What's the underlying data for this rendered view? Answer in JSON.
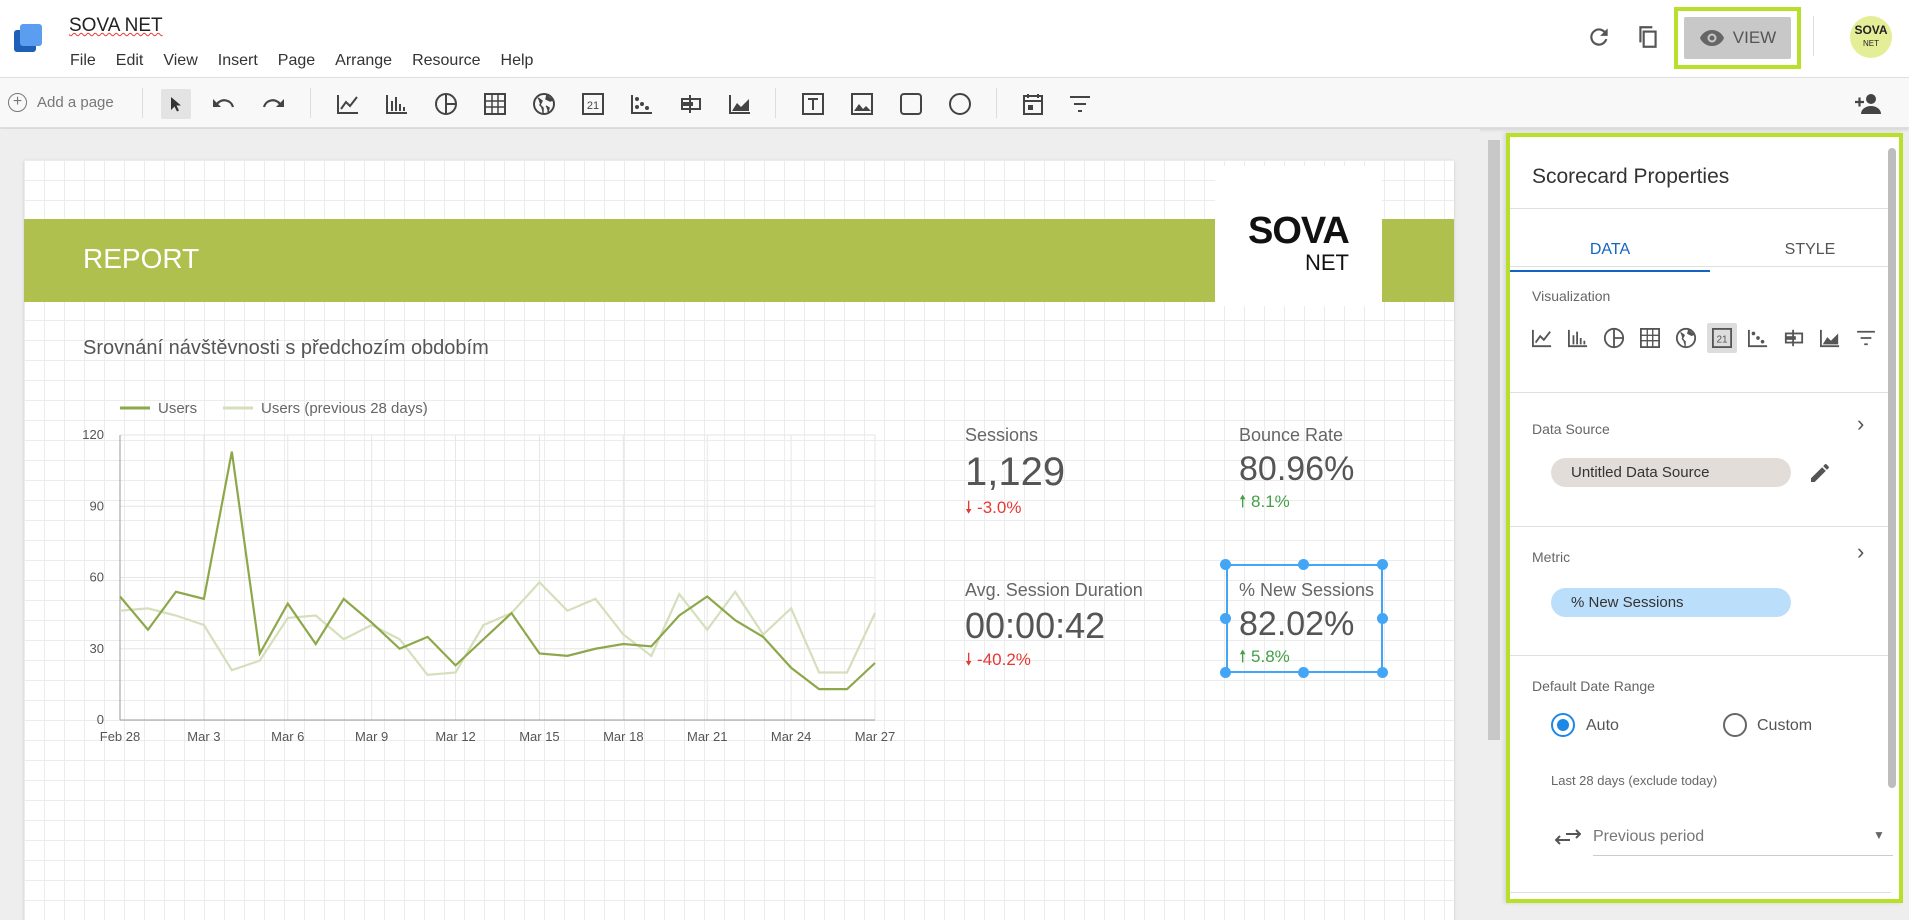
{
  "app": {
    "title": "SOVA NET",
    "menu": [
      "File",
      "Edit",
      "View",
      "Insert",
      "Page",
      "Arrange",
      "Resource",
      "Help"
    ],
    "view_button": "VIEW",
    "avatar_text": "SOVA",
    "avatar_sub": "NET"
  },
  "toolbar": {
    "add_page": "Add a page",
    "icons": [
      "pointer-icon",
      "undo-icon",
      "redo-icon",
      "time-series-icon",
      "bar-chart-icon",
      "pie-chart-icon",
      "table-icon",
      "geo-map-icon",
      "scorecard-icon",
      "scatter-chart-icon",
      "bullet-chart-icon",
      "area-chart-icon",
      "text-icon",
      "image-icon",
      "rectangle-icon",
      "circle-icon",
      "date-range-icon",
      "filter-control-icon"
    ],
    "share_icon": "add-person-icon"
  },
  "report": {
    "banner": "REPORT",
    "logo_main": "SOVA",
    "logo_sub": "NET",
    "chart_title": "Srovnání návštěvnosti s předchozím obdobím"
  },
  "chart_data": {
    "type": "line",
    "x": [
      "Feb 28",
      "Mar 1",
      "Mar 2",
      "Mar 3",
      "Mar 4",
      "Mar 5",
      "Mar 6",
      "Mar 7",
      "Mar 8",
      "Mar 9",
      "Mar 10",
      "Mar 11",
      "Mar 12",
      "Mar 13",
      "Mar 14",
      "Mar 15",
      "Mar 16",
      "Mar 17",
      "Mar 18",
      "Mar 19",
      "Mar 20",
      "Mar 21",
      "Mar 22",
      "Mar 23",
      "Mar 24",
      "Mar 25",
      "Mar 26",
      "Mar 27"
    ],
    "x_ticks": [
      "Feb 28",
      "Mar 3",
      "Mar 6",
      "Mar 9",
      "Mar 12",
      "Mar 15",
      "Mar 18",
      "Mar 21",
      "Mar 24",
      "Mar 27"
    ],
    "ylim": [
      0,
      120
    ],
    "y_ticks": [
      0,
      30,
      60,
      90,
      120
    ],
    "series": [
      {
        "name": "Users",
        "color": "#8da84a",
        "values": [
          52,
          38,
          54,
          51,
          113,
          28,
          49,
          32,
          51,
          41,
          30,
          35,
          23,
          34,
          45,
          28,
          27,
          30,
          32,
          31,
          44,
          52,
          42,
          35,
          22,
          13,
          13,
          24
        ]
      },
      {
        "name": "Users (previous 28 days)",
        "color": "#d5dfbb",
        "values": [
          46,
          47,
          44,
          40,
          21,
          25,
          43,
          44,
          34,
          40,
          34,
          19,
          20,
          40,
          45,
          58,
          46,
          51,
          36,
          27,
          53,
          38,
          54,
          36,
          47,
          20,
          20,
          45
        ]
      }
    ],
    "grid": true,
    "legend_position": "top-left"
  },
  "scorecards": [
    {
      "label": "Sessions",
      "value": "1,129",
      "delta": "-3.0%",
      "direction": "down"
    },
    {
      "label": "Bounce Rate",
      "value": "80.96%",
      "delta": "8.1%",
      "direction": "up"
    },
    {
      "label": "Avg. Session Duration",
      "value": "00:00:42",
      "delta": "-40.2%",
      "direction": "down"
    },
    {
      "label": "% New Sessions",
      "value": "82.02%",
      "delta": "5.8%",
      "direction": "up"
    }
  ],
  "panel": {
    "title": "Scorecard Properties",
    "tabs": [
      "DATA",
      "STYLE"
    ],
    "visualization_label": "Visualization",
    "data_source_label": "Data Source",
    "data_source_value": "Untitled Data Source",
    "metric_label": "Metric",
    "metric_value": "% New Sessions",
    "date_range_label": "Default Date Range",
    "auto_label": "Auto",
    "custom_label": "Custom",
    "range_note": "Last 28 days (exclude today)",
    "comparison_value": "Previous period"
  },
  "colors": {
    "accent": "#afc04f",
    "highlight": "#b8e02a",
    "selection": "#42a5f5"
  }
}
